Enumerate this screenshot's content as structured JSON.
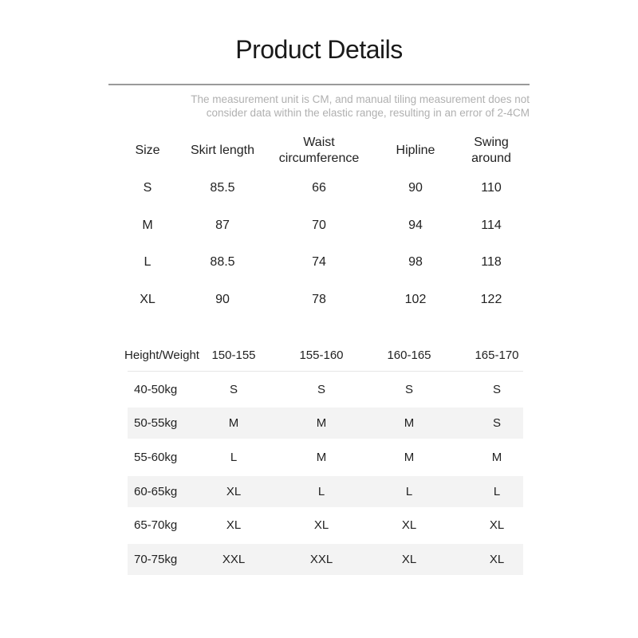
{
  "title": "Product Details",
  "note": [
    "The measurement unit is CM, and manual tiling measurement does not",
    "consider data within the elastic range, resulting in an error of 2-4CM"
  ],
  "size_table": {
    "headers": [
      [
        "Size"
      ],
      [
        "Skirt length"
      ],
      [
        "Waist",
        "circumference"
      ],
      [
        "Hipline"
      ],
      [
        "Swing",
        "around"
      ]
    ],
    "rows": [
      [
        "S",
        "85.5",
        "66",
        "90",
        "110"
      ],
      [
        "M",
        "87",
        "70",
        "94",
        "114"
      ],
      [
        "L",
        "88.5",
        "74",
        "98",
        "118"
      ],
      [
        "XL",
        "90",
        "78",
        "102",
        "122"
      ]
    ]
  },
  "fit_table": {
    "headers": [
      "Height/Weight",
      "150-155",
      "155-160",
      "160-165",
      "165-170"
    ],
    "rows": [
      [
        "40-50kg",
        "S",
        "S",
        "S",
        "S"
      ],
      [
        "50-55kg",
        "M",
        "M",
        "M",
        "S"
      ],
      [
        "55-60kg",
        "L",
        "M",
        "M",
        "M"
      ],
      [
        "60-65kg",
        "XL",
        "L",
        "L",
        "L"
      ],
      [
        "65-70kg",
        "XL",
        "XL",
        "XL",
        "XL"
      ],
      [
        "70-75kg",
        "XXL",
        "XXL",
        "XL",
        "XL"
      ]
    ],
    "shade_color": "#f3f3f3"
  }
}
